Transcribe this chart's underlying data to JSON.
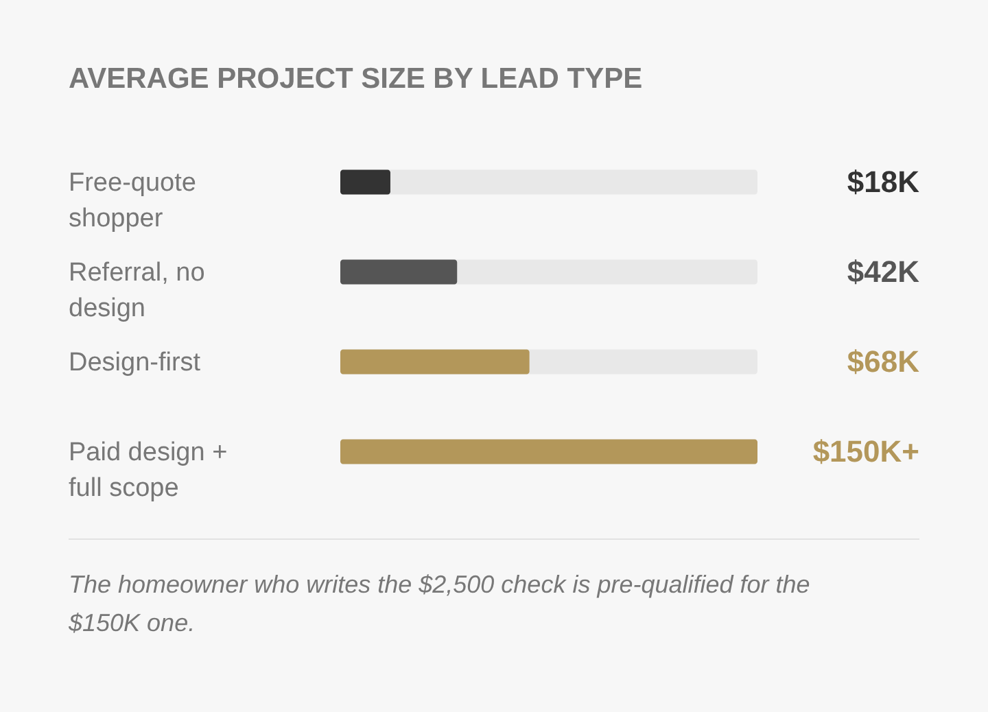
{
  "chart_data": {
    "type": "bar",
    "orientation": "horizontal",
    "title": "AVERAGE PROJECT SIZE BY LEAD TYPE",
    "categories": [
      "Free-quote shopper",
      "Referral, no design",
      "Design-first",
      "Paid design + full scope"
    ],
    "values": [
      18,
      42,
      68,
      150
    ],
    "colors": [
      "#333333",
      "#555555",
      "#b3975a",
      "#b3975a"
    ],
    "value_labels": [
      "$18K",
      "$42K",
      "$68K",
      "$150K+"
    ],
    "xlim": [
      0,
      150
    ],
    "tick_labels": false,
    "grid": false,
    "annotations": [
      "The homeowner who writes the $2,500 check is pre-qualified for the $150K one."
    ]
  }
}
